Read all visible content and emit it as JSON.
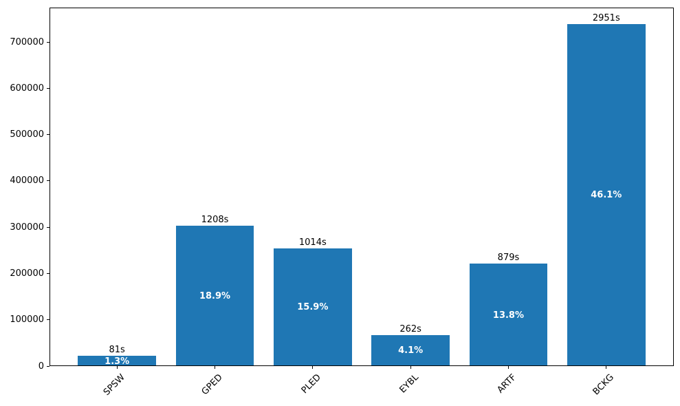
{
  "chart_data": {
    "type": "bar",
    "title": "",
    "xlabel": "",
    "ylabel": "",
    "categories": [
      "SPSW",
      "GPED",
      "PLED",
      "EYBL",
      "ARTF",
      "BCKG"
    ],
    "values": [
      20250,
      302000,
      253500,
      65500,
      219750,
      737750
    ],
    "bar_labels_top": [
      "81s",
      "1208s",
      "1014s",
      "262s",
      "879s",
      "2951s"
    ],
    "bar_labels_inside": [
      "1.3%",
      "18.9%",
      "15.9%",
      "4.1%",
      "13.8%",
      "46.1%"
    ],
    "yticks": [
      0,
      100000,
      200000,
      300000,
      400000,
      500000,
      600000,
      700000
    ],
    "ytick_labels": [
      "0",
      "100000",
      "200000",
      "300000",
      "400000",
      "500000",
      "600000",
      "700000"
    ],
    "ylim": [
      0,
      774637
    ],
    "grid": false,
    "legend_position": "none",
    "bar_color": "#1f77b4",
    "inside_label_color": "#ffffff",
    "top_label_color": "#000000",
    "axis_color": "#000000"
  }
}
